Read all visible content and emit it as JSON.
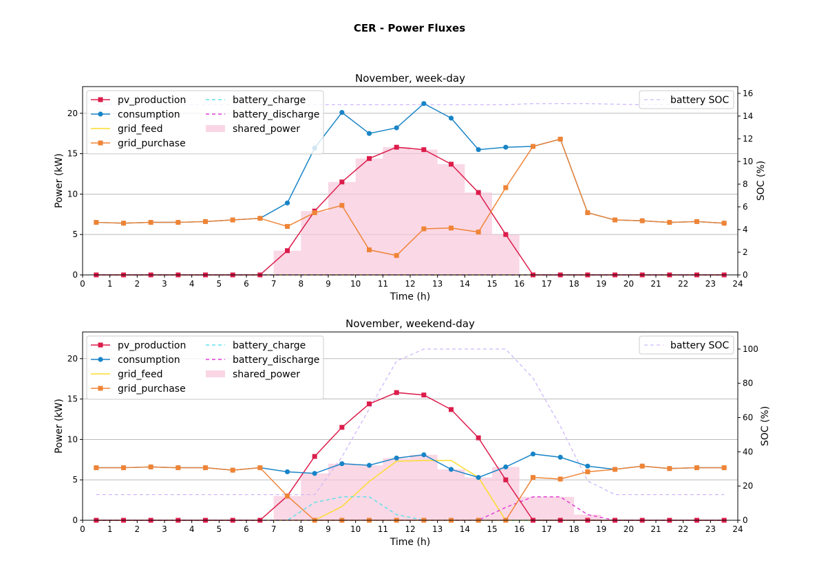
{
  "figure_title": "CER - Power Fluxes",
  "colors": {
    "pv_production": "#dc1c4b",
    "consumption": "#1884c7",
    "grid_feed": "#fddc2a",
    "grid_purchase": "#ef8436",
    "battery_charge": "#5fe0ea",
    "battery_discharge": "#e43fd6",
    "shared_power": "#f8c8dc",
    "battery_soc": "#cdb6fa",
    "grid": "#b0b0b0"
  },
  "chart_data": [
    {
      "type": "line",
      "title": "November, week-day",
      "xlabel": "Time (h)",
      "ylabel": "Power (kW)",
      "ylabel_right": "SOC (%)",
      "xlim": [
        0,
        24
      ],
      "ylim": [
        0,
        23.3
      ],
      "ylim_right": [
        0,
        16.6
      ],
      "xticks": [
        0,
        1,
        2,
        3,
        4,
        5,
        6,
        7,
        8,
        9,
        10,
        11,
        12,
        13,
        14,
        15,
        16,
        17,
        18,
        19,
        20,
        21,
        22,
        23,
        24
      ],
      "yticks": [
        0,
        5,
        10,
        15,
        20
      ],
      "yticks_right": [
        0,
        2,
        4,
        6,
        8,
        10,
        12,
        14,
        16
      ],
      "grid": "horizontal",
      "legend_left": "top-left",
      "legend_right": "top-right",
      "x": [
        0.5,
        1.5,
        2.5,
        3.5,
        4.5,
        5.5,
        6.5,
        7.5,
        8.5,
        9.5,
        10.5,
        11.5,
        12.5,
        13.5,
        14.5,
        15.5,
        16.5,
        17.5,
        18.5,
        19.5,
        20.5,
        21.5,
        22.5,
        23.5
      ],
      "series": [
        {
          "name": "pv_production",
          "marker": "square",
          "values": [
            0,
            0,
            0,
            0,
            0,
            0,
            0,
            3.0,
            7.9,
            11.5,
            14.4,
            15.8,
            15.5,
            13.7,
            10.2,
            5.0,
            0,
            0,
            0,
            0,
            0,
            0,
            0,
            0
          ]
        },
        {
          "name": "consumption",
          "marker": "circle",
          "values": [
            6.5,
            6.4,
            6.5,
            6.5,
            6.6,
            6.8,
            7.0,
            8.9,
            15.7,
            20.1,
            17.5,
            18.2,
            21.2,
            19.4,
            15.5,
            15.8,
            15.9,
            16.8,
            7.7,
            6.8,
            6.7,
            6.5,
            6.6,
            6.4
          ]
        },
        {
          "name": "grid_feed",
          "marker": "none",
          "values": [
            0,
            0,
            0,
            0,
            0,
            0,
            0,
            0,
            0,
            0,
            0,
            0,
            0,
            0,
            0,
            0,
            0,
            0,
            0,
            0,
            0,
            0,
            0,
            0
          ]
        },
        {
          "name": "grid_purchase",
          "marker": "square",
          "values": [
            6.5,
            6.4,
            6.5,
            6.5,
            6.6,
            6.8,
            7.0,
            6.0,
            7.7,
            8.6,
            3.1,
            2.4,
            5.7,
            5.8,
            5.3,
            10.8,
            15.9,
            16.8,
            7.7,
            6.8,
            6.7,
            6.5,
            6.6,
            6.4
          ]
        },
        {
          "name": "battery_charge",
          "marker": "none",
          "values": [
            0,
            0,
            0,
            0,
            0,
            0,
            0,
            0,
            0,
            0,
            0,
            0,
            0,
            0,
            0,
            0,
            0,
            0,
            0,
            0,
            0,
            0,
            0,
            0
          ]
        },
        {
          "name": "battery_discharge",
          "marker": "none",
          "values": [
            0,
            0,
            0,
            0,
            0,
            0,
            0,
            0,
            0,
            0,
            0,
            0,
            0,
            0,
            0,
            0,
            0,
            0,
            0,
            0,
            0,
            0,
            0,
            0
          ]
        }
      ],
      "shared_power": {
        "name": "shared_power",
        "values": [
          0,
          0,
          0,
          0,
          0,
          0,
          0,
          3.0,
          7.9,
          11.5,
          14.4,
          15.8,
          15.5,
          13.7,
          10.2,
          5.0,
          0,
          0,
          0,
          0,
          0,
          0,
          0,
          0
        ]
      },
      "soc": {
        "name": "battery SOC",
        "values": [
          15.0,
          15.0,
          15.0,
          15.0,
          15.0,
          15.0,
          15.0,
          15.0,
          15.0,
          15.0,
          15.0,
          15.0,
          15.0,
          15.0,
          15.0,
          15.0,
          15.1,
          15.1,
          15.1,
          15.05,
          15.0,
          15.0,
          15.0,
          15.0
        ]
      }
    },
    {
      "type": "line",
      "title": "November, weekend-day",
      "xlabel": "Time (h)",
      "ylabel": "Power (kW)",
      "ylabel_right": "SOC (%)",
      "xlim": [
        0,
        24
      ],
      "ylim": [
        0,
        23.3
      ],
      "ylim_right": [
        0,
        110
      ],
      "xticks": [
        0,
        1,
        2,
        3,
        4,
        5,
        6,
        7,
        8,
        9,
        10,
        11,
        12,
        13,
        14,
        15,
        16,
        17,
        18,
        19,
        20,
        21,
        22,
        23,
        24
      ],
      "yticks": [
        0,
        5,
        10,
        15,
        20
      ],
      "yticks_right": [
        0,
        20,
        40,
        60,
        80,
        100
      ],
      "grid": "horizontal",
      "legend_left": "top-left",
      "legend_right": "top-right",
      "x": [
        0.5,
        1.5,
        2.5,
        3.5,
        4.5,
        5.5,
        6.5,
        7.5,
        8.5,
        9.5,
        10.5,
        11.5,
        12.5,
        13.5,
        14.5,
        15.5,
        16.5,
        17.5,
        18.5,
        19.5,
        20.5,
        21.5,
        22.5,
        23.5
      ],
      "series": [
        {
          "name": "pv_production",
          "marker": "square",
          "values": [
            0,
            0,
            0,
            0,
            0,
            0,
            0,
            3.0,
            7.9,
            11.5,
            14.4,
            15.8,
            15.5,
            13.7,
            10.2,
            5.0,
            0,
            0,
            0,
            0,
            0,
            0,
            0,
            0
          ]
        },
        {
          "name": "consumption",
          "marker": "circle",
          "values": [
            6.5,
            6.5,
            6.6,
            6.5,
            6.5,
            6.2,
            6.5,
            6.0,
            5.8,
            7.0,
            6.8,
            7.7,
            8.1,
            6.3,
            5.3,
            6.6,
            8.2,
            7.8,
            6.7,
            6.3,
            6.7,
            6.4,
            6.5,
            6.5
          ]
        },
        {
          "name": "grid_feed",
          "marker": "none",
          "values": [
            0,
            0,
            0,
            0,
            0,
            0,
            0,
            0,
            0,
            1.7,
            4.8,
            7.3,
            7.4,
            7.4,
            5.3,
            0,
            0,
            0,
            0,
            0,
            0,
            0,
            0,
            0
          ]
        },
        {
          "name": "grid_purchase",
          "marker": "square",
          "values": [
            6.5,
            6.5,
            6.6,
            6.5,
            6.5,
            6.2,
            6.5,
            3.0,
            0,
            0,
            0,
            0,
            0,
            0,
            0,
            0,
            5.3,
            5.1,
            6.0,
            6.3,
            6.7,
            6.4,
            6.5,
            6.5
          ]
        },
        {
          "name": "battery_charge",
          "marker": "none",
          "values": [
            0,
            0,
            0,
            0,
            0,
            0,
            0,
            0,
            2.2,
            2.9,
            2.9,
            0.7,
            0,
            0,
            0,
            0,
            0,
            0,
            0,
            0,
            0,
            0,
            0,
            0
          ]
        },
        {
          "name": "battery_discharge",
          "marker": "none",
          "values": [
            0,
            0,
            0,
            0,
            0,
            0,
            0,
            0,
            0,
            0,
            0,
            0,
            0,
            0,
            0,
            1.6,
            2.9,
            2.9,
            0.7,
            0,
            0,
            0,
            0,
            0
          ]
        }
      ],
      "shared_power": {
        "name": "shared_power",
        "values": [
          0,
          0,
          0,
          0,
          0,
          0,
          0,
          3.0,
          5.8,
          7.0,
          6.8,
          7.7,
          8.1,
          6.3,
          5.3,
          6.6,
          2.9,
          2.9,
          0.7,
          0,
          0,
          0,
          0,
          0
        ]
      },
      "soc": {
        "name": "battery SOC",
        "values": [
          15,
          15,
          15,
          15,
          15,
          15,
          15,
          15,
          15,
          37,
          65,
          93,
          100,
          100,
          100,
          100,
          83,
          55,
          23,
          15,
          15,
          15,
          15,
          15
        ]
      }
    }
  ]
}
